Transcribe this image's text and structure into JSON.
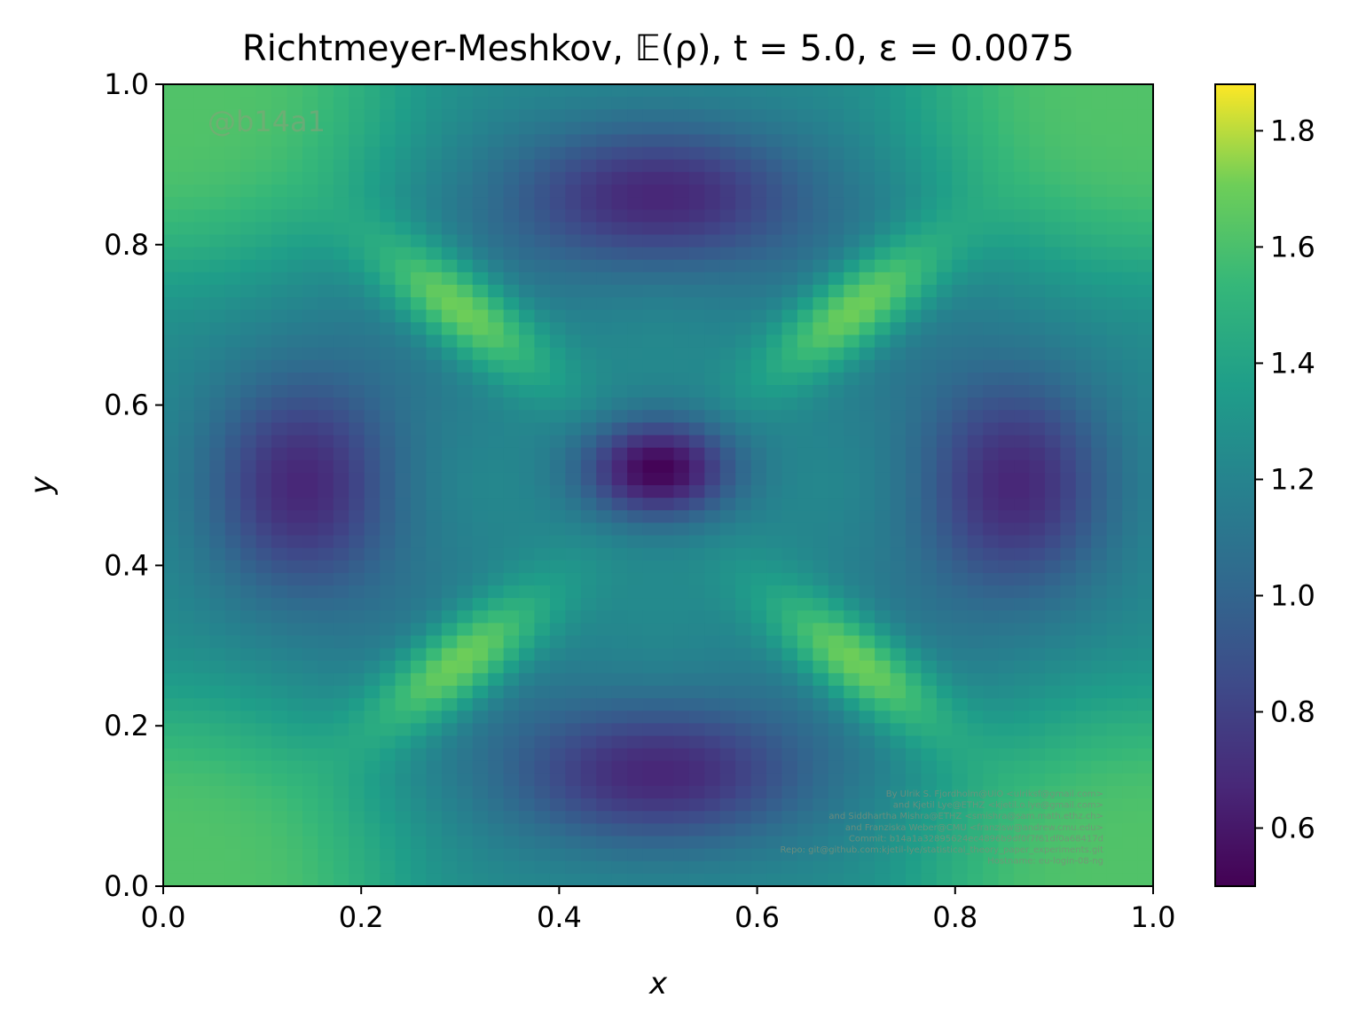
{
  "chart_data": {
    "type": "heatmap",
    "title": "Richtmeyer-Meshkov, 𝔼(ρ), t = 5.0, ε = 0.0075",
    "xlabel": "x",
    "ylabel": "y",
    "xlim": [
      0.0,
      1.0
    ],
    "ylim": [
      0.0,
      1.0
    ],
    "xticks": [
      "0.0",
      "0.2",
      "0.4",
      "0.6",
      "0.8",
      "1.0"
    ],
    "yticks": [
      "0.0",
      "0.2",
      "0.4",
      "0.6",
      "0.8",
      "1.0"
    ],
    "colorbar": {
      "colormap": "viridis",
      "range": [
        0.5,
        1.88
      ],
      "ticks": [
        0.6,
        0.8,
        1.0,
        1.2,
        1.4,
        1.6,
        1.8
      ],
      "tick_labels": [
        "0.6",
        "0.8",
        "1.0",
        "1.2",
        "1.4",
        "1.6",
        "1.8"
      ]
    },
    "grid": false,
    "field": {
      "background": 1.25,
      "features": [
        {
          "kind": "min",
          "x": 0.5,
          "y": 0.52,
          "value": 0.5
        },
        {
          "kind": "low-lobe",
          "x": 0.14,
          "y": 0.5,
          "value": 0.62
        },
        {
          "kind": "low-lobe",
          "x": 0.86,
          "y": 0.5,
          "value": 0.62
        },
        {
          "kind": "low-lobe",
          "x": 0.5,
          "y": 0.86,
          "value": 0.62
        },
        {
          "kind": "low-lobe",
          "x": 0.5,
          "y": 0.14,
          "value": 0.62
        },
        {
          "kind": "high-band",
          "x": 0.3,
          "y": 0.72,
          "value": 1.85
        },
        {
          "kind": "high-band",
          "x": 0.7,
          "y": 0.72,
          "value": 1.85
        },
        {
          "kind": "high-band",
          "x": 0.3,
          "y": 0.28,
          "value": 1.85
        },
        {
          "kind": "high-band",
          "x": 0.7,
          "y": 0.28,
          "value": 1.85
        },
        {
          "kind": "corner",
          "x": 0.0,
          "y": 1.0,
          "value": 1.62
        },
        {
          "kind": "corner",
          "x": 1.0,
          "y": 1.0,
          "value": 1.62
        },
        {
          "kind": "corner",
          "x": 0.0,
          "y": 0.0,
          "value": 1.62
        },
        {
          "kind": "corner",
          "x": 1.0,
          "y": 0.0,
          "value": 1.62
        }
      ]
    },
    "annotations": {
      "watermark": "@b14a1",
      "credits": [
        "By Ulrik S. Fjordholm@UiO <ulriksf@gmail.com>",
        "and Kjetil Lye@ETHZ <kjetil.o.lye@gmail.com>",
        "and Siddhartha Mishra@ETHZ <smishra@sam.math.ethz.ch>",
        "and Franziska Weber@CMU <franzisw@andrew.cmu.edu>",
        "Commit: b14a1a32895624ec4896b9df0f7f61df0a68417d",
        "Repo: git@github.com:kjetil-lye/statistical_theory_paper_experiments.git",
        "Hostname: eu-login-08-ng"
      ]
    }
  }
}
